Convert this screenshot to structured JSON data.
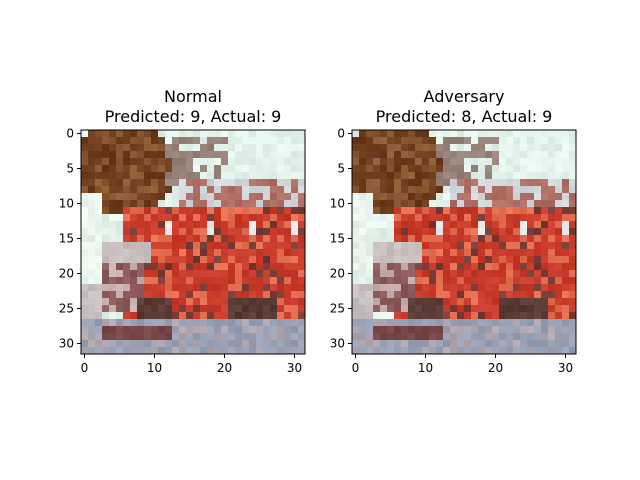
{
  "figure": {
    "panels": [
      {
        "title_line1": "Normal",
        "title_line2": "Predicted: 9, Actual: 9"
      },
      {
        "title_line1": "Adversary",
        "title_line2": "Predicted: 8, Actual: 9"
      }
    ]
  },
  "chart_data": [
    {
      "type": "heatmap",
      "title": "Normal\nPredicted: 9, Actual: 9",
      "image_size": [
        32,
        32
      ],
      "xlim": [
        -0.5,
        31.5
      ],
      "ylim": [
        31.5,
        -0.5
      ],
      "xticks": [
        0,
        10,
        20,
        30
      ],
      "yticks": [
        0,
        5,
        10,
        15,
        20,
        25,
        30
      ],
      "predicted": 9,
      "actual": 9,
      "image_description": "Low-resolution 32x32 photo of a red fire truck with a tree at upper left and pale sky"
    },
    {
      "type": "heatmap",
      "title": "Adversary\nPredicted: 8, Actual: 9",
      "image_size": [
        32,
        32
      ],
      "xlim": [
        -0.5,
        31.5
      ],
      "ylim": [
        31.5,
        -0.5
      ],
      "xticks": [
        0,
        10,
        20,
        30
      ],
      "yticks": [
        0,
        5,
        10,
        15,
        20,
        25,
        30
      ],
      "predicted": 8,
      "actual": 9,
      "image_description": "Adversarially perturbed version of the same fire truck image"
    }
  ],
  "colors": {
    "sky": "#e4f2ec",
    "tree": "#6b3b1c",
    "truck_red": "#c83a2a",
    "road": "#9aa0b4",
    "shadow": "#5a3a34"
  }
}
